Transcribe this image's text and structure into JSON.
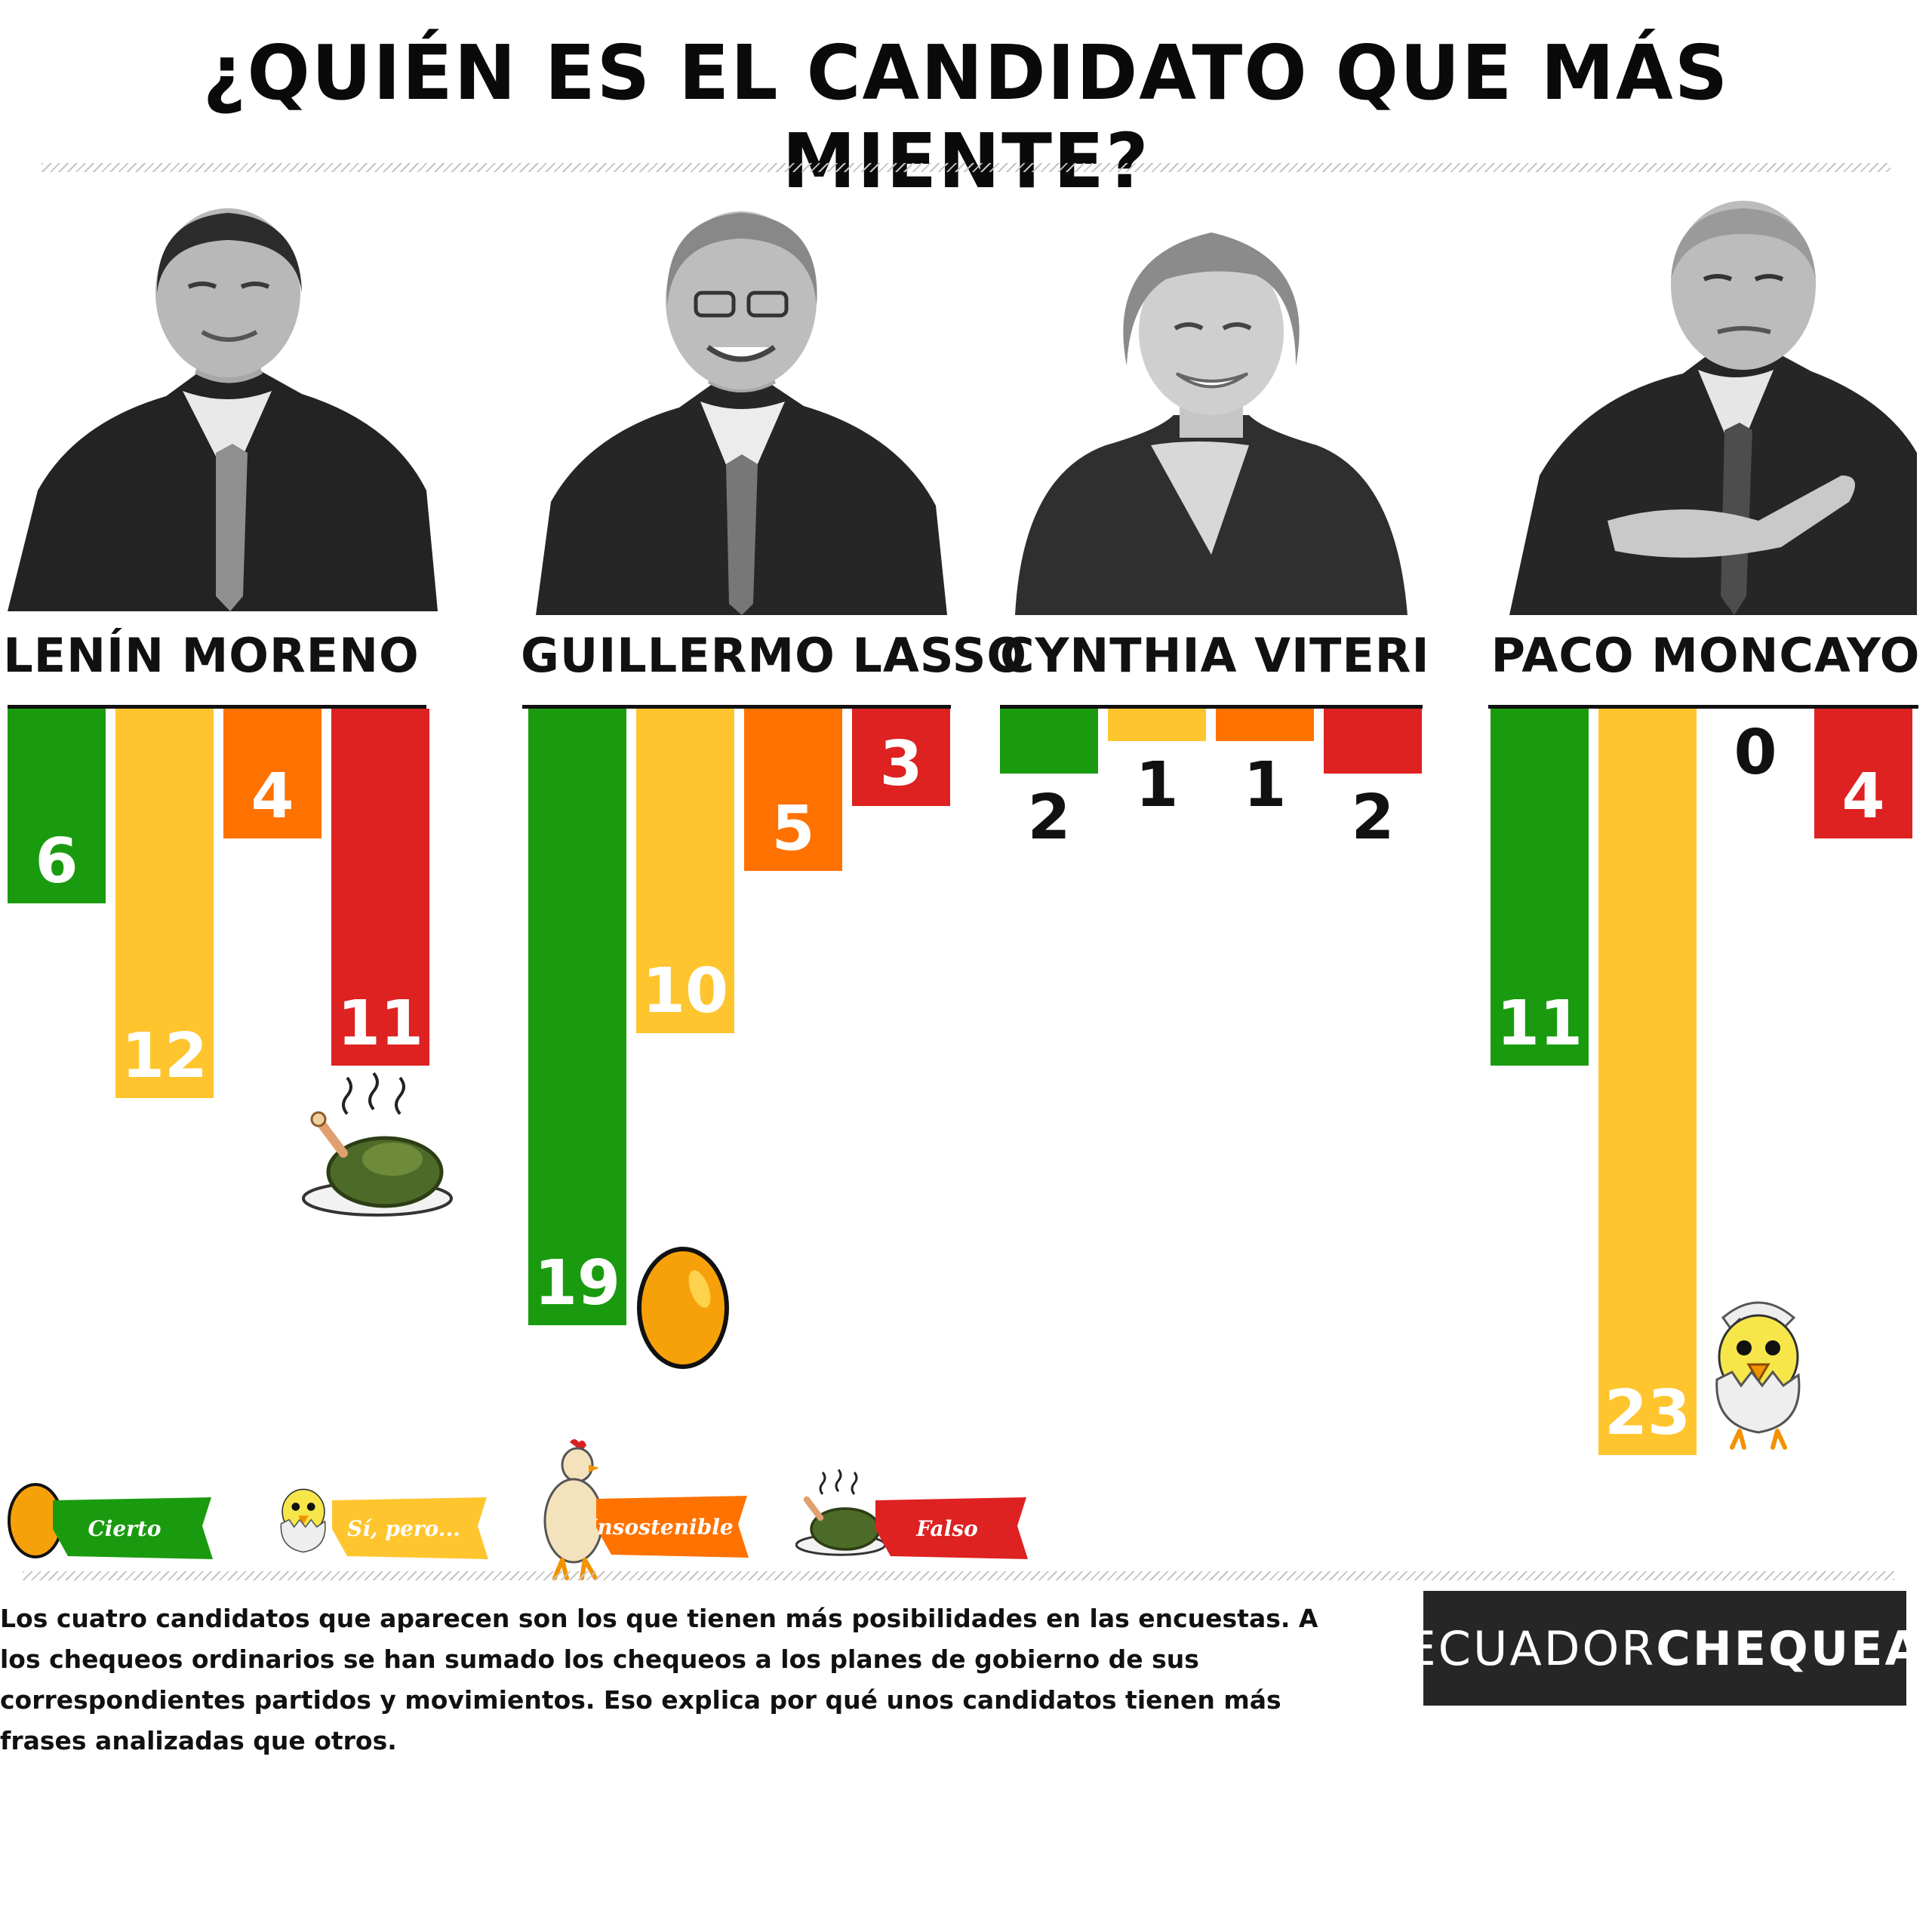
{
  "title": "¿QUIÉN ES EL CANDIDATO QUE MÁS MIENTE?",
  "colors": {
    "cierto": "#1a9b0f",
    "si_pero": "#fec52e",
    "insostenible": "#ff7200",
    "falso": "#de2121"
  },
  "candidates": [
    {
      "name": "LENÍN MORENO"
    },
    {
      "name": "GUILLERMO LASSO"
    },
    {
      "name": "CYNTHIA VITERI"
    },
    {
      "name": "PACO MONCAYO"
    }
  ],
  "chart_data": {
    "type": "bar",
    "categories": [
      "LENÍN MORENO",
      "GUILLERMO LASSO",
      "CYNTHIA VITERI",
      "PACO MONCAYO"
    ],
    "series": [
      {
        "name": "Cierto",
        "values": [
          6,
          19,
          2,
          11
        ]
      },
      {
        "name": "Sí, pero...",
        "values": [
          12,
          10,
          1,
          23
        ]
      },
      {
        "name": "Insostenible",
        "values": [
          4,
          5,
          1,
          0
        ]
      },
      {
        "name": "Falso",
        "values": [
          11,
          3,
          2,
          4
        ]
      }
    ],
    "orientation": "downward",
    "legend_position": "bottom-left",
    "grid": false
  },
  "legend": [
    {
      "label": "Cierto",
      "icon": "egg-icon"
    },
    {
      "label": "Sí, pero...",
      "icon": "hatching-chick-icon"
    },
    {
      "label": "Insostenible",
      "icon": "chicken-icon"
    },
    {
      "label": "Falso",
      "icon": "roast-chicken-icon"
    }
  ],
  "footnote": "Los cuatro candidatos que aparecen son los que tienen más posibilidades en las encuestas. A los chequeos ordinarios se han sumado los chequeos a los planes de gobierno de sus correspondientes partidos y movimientos. Eso explica por qué unos candidatos tienen más frases analizadas que otros.",
  "brand": {
    "light": "ECUADOR",
    "bold": "CHEQUEA"
  }
}
